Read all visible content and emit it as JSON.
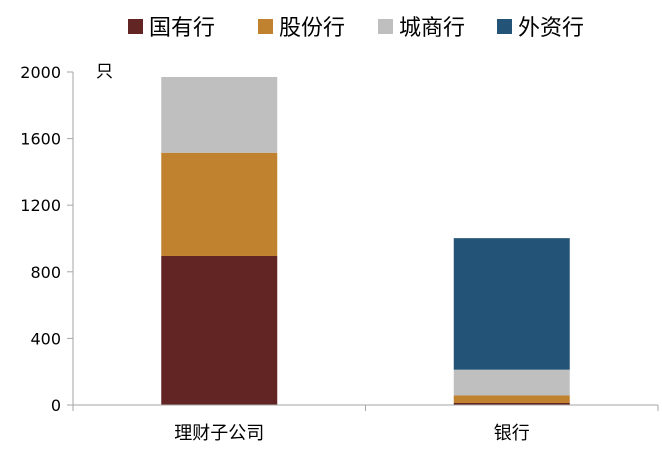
{
  "chart_data": {
    "type": "bar",
    "stacked": true,
    "categories": [
      "理财子公司",
      "银行"
    ],
    "series": [
      {
        "name": "国有行",
        "values": [
          895,
          12
        ],
        "color": "#632523"
      },
      {
        "name": "股份行",
        "values": [
          620,
          45
        ],
        "color": "#C0822F"
      },
      {
        "name": "城商行",
        "values": [
          455,
          155
        ],
        "color": "#BFBFBF"
      },
      {
        "name": "外资行",
        "values": [
          0,
          790
        ],
        "color": "#245378"
      }
    ],
    "ylabel": "只",
    "ylim": [
      0,
      2000
    ],
    "yticks": [
      0,
      400,
      800,
      1200,
      1600,
      2000
    ],
    "legend_position": "top",
    "grid": false
  }
}
